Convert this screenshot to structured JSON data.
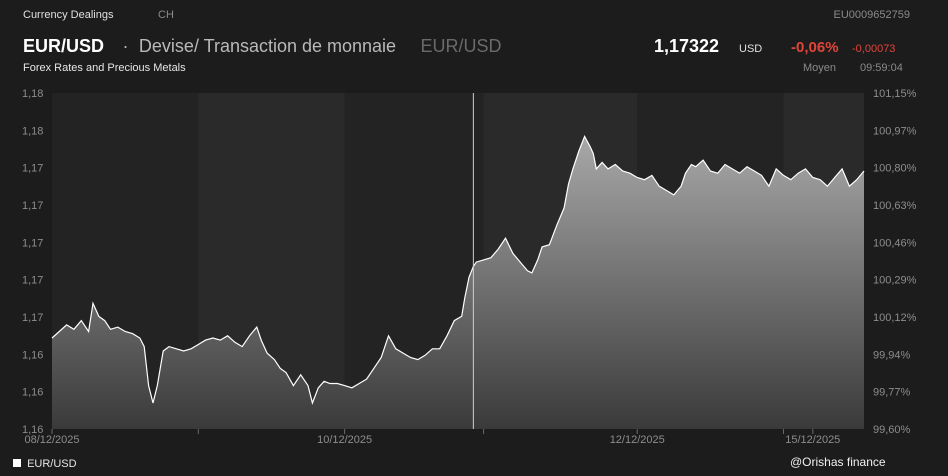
{
  "header": {
    "provider": "Currency Dealings",
    "country": "CH",
    "isin": "EU0009652759",
    "pair": "EUR/USD",
    "separator": "·",
    "description": "Devise/ Transaction de monnaie",
    "pair_dim": "EUR/USD",
    "subtitle": "Forex Rates and Precious Metals",
    "price": "1,17322",
    "currency": "USD",
    "change_pct": "-0,06%",
    "change_abs": "-0,00073",
    "mode": "Moyen",
    "time": "09:59:04"
  },
  "legend": {
    "label": "EUR/USD"
  },
  "watermark": "@Orishas finance",
  "colors": {
    "background": "#1c1c1c",
    "band": "#2a2a2a",
    "line": "#ffffff",
    "negative": "#e0453a"
  },
  "chart_data": {
    "type": "area",
    "series_name": "EUR/USD",
    "left_ticks": [
      "1,18",
      "1,18",
      "1,17",
      "1,17",
      "1,17",
      "1,17",
      "1,17",
      "1,16",
      "1,16",
      "1,16"
    ],
    "right_ticks": [
      "101,15%",
      "100,97%",
      "100,80%",
      "100,63%",
      "100,46%",
      "100,29%",
      "100,12%",
      "99,94%",
      "99,77%",
      "99,60%"
    ],
    "x_ticks": [
      "08/12/2025",
      "10/12/2025",
      "12/12/2025",
      "15/12/2025"
    ],
    "ylim_pct": [
      99.6,
      101.15
    ],
    "x_range_days": [
      0,
      5.55
    ],
    "x_tick_days": [
      0,
      2,
      4,
      5.2
    ],
    "band_days": [
      [
        1.0,
        2.0
      ],
      [
        2.95,
        4.0
      ],
      [
        5.0,
        5.55
      ]
    ],
    "marker_day": 2.88,
    "points": [
      [
        0.0,
        100.02
      ],
      [
        0.05,
        100.05
      ],
      [
        0.1,
        100.08
      ],
      [
        0.15,
        100.06
      ],
      [
        0.2,
        100.1
      ],
      [
        0.25,
        100.05
      ],
      [
        0.28,
        100.18
      ],
      [
        0.32,
        100.12
      ],
      [
        0.36,
        100.1
      ],
      [
        0.4,
        100.06
      ],
      [
        0.45,
        100.07
      ],
      [
        0.5,
        100.05
      ],
      [
        0.55,
        100.04
      ],
      [
        0.6,
        100.02
      ],
      [
        0.63,
        99.98
      ],
      [
        0.66,
        99.8
      ],
      [
        0.69,
        99.72
      ],
      [
        0.72,
        99.8
      ],
      [
        0.76,
        99.96
      ],
      [
        0.8,
        99.98
      ],
      [
        0.85,
        99.97
      ],
      [
        0.9,
        99.96
      ],
      [
        0.95,
        99.97
      ],
      [
        1.0,
        99.99
      ],
      [
        1.05,
        100.01
      ],
      [
        1.1,
        100.02
      ],
      [
        1.15,
        100.01
      ],
      [
        1.2,
        100.03
      ],
      [
        1.25,
        100.0
      ],
      [
        1.3,
        99.98
      ],
      [
        1.35,
        100.03
      ],
      [
        1.4,
        100.07
      ],
      [
        1.43,
        100.01
      ],
      [
        1.47,
        99.95
      ],
      [
        1.52,
        99.92
      ],
      [
        1.56,
        99.88
      ],
      [
        1.6,
        99.86
      ],
      [
        1.65,
        99.8
      ],
      [
        1.7,
        99.85
      ],
      [
        1.75,
        99.8
      ],
      [
        1.78,
        99.72
      ],
      [
        1.82,
        99.79
      ],
      [
        1.86,
        99.82
      ],
      [
        1.9,
        99.81
      ],
      [
        1.95,
        99.81
      ],
      [
        2.0,
        99.8
      ],
      [
        2.05,
        99.79
      ],
      [
        2.1,
        99.81
      ],
      [
        2.15,
        99.83
      ],
      [
        2.2,
        99.88
      ],
      [
        2.25,
        99.93
      ],
      [
        2.3,
        100.03
      ],
      [
        2.35,
        99.97
      ],
      [
        2.4,
        99.95
      ],
      [
        2.45,
        99.93
      ],
      [
        2.5,
        99.92
      ],
      [
        2.55,
        99.94
      ],
      [
        2.6,
        99.97
      ],
      [
        2.65,
        99.97
      ],
      [
        2.7,
        100.03
      ],
      [
        2.75,
        100.1
      ],
      [
        2.8,
        100.12
      ],
      [
        2.82,
        100.2
      ],
      [
        2.85,
        100.3
      ],
      [
        2.88,
        100.35
      ],
      [
        2.9,
        100.37
      ],
      [
        2.95,
        100.38
      ],
      [
        3.0,
        100.39
      ],
      [
        3.05,
        100.43
      ],
      [
        3.1,
        100.48
      ],
      [
        3.15,
        100.41
      ],
      [
        3.2,
        100.37
      ],
      [
        3.25,
        100.33
      ],
      [
        3.28,
        100.32
      ],
      [
        3.32,
        100.38
      ],
      [
        3.35,
        100.44
      ],
      [
        3.4,
        100.45
      ],
      [
        3.45,
        100.54
      ],
      [
        3.5,
        100.62
      ],
      [
        3.53,
        100.73
      ],
      [
        3.56,
        100.8
      ],
      [
        3.6,
        100.88
      ],
      [
        3.64,
        100.95
      ],
      [
        3.68,
        100.9
      ],
      [
        3.7,
        100.87
      ],
      [
        3.72,
        100.8
      ],
      [
        3.76,
        100.83
      ],
      [
        3.8,
        100.8
      ],
      [
        3.85,
        100.82
      ],
      [
        3.9,
        100.79
      ],
      [
        3.95,
        100.78
      ],
      [
        4.0,
        100.76
      ],
      [
        4.05,
        100.75
      ],
      [
        4.1,
        100.77
      ],
      [
        4.15,
        100.72
      ],
      [
        4.2,
        100.7
      ],
      [
        4.25,
        100.68
      ],
      [
        4.3,
        100.72
      ],
      [
        4.33,
        100.78
      ],
      [
        4.37,
        100.82
      ],
      [
        4.4,
        100.81
      ],
      [
        4.45,
        100.84
      ],
      [
        4.5,
        100.79
      ],
      [
        4.55,
        100.78
      ],
      [
        4.6,
        100.82
      ],
      [
        4.65,
        100.8
      ],
      [
        4.7,
        100.78
      ],
      [
        4.75,
        100.81
      ],
      [
        4.8,
        100.79
      ],
      [
        4.85,
        100.77
      ],
      [
        4.9,
        100.72
      ],
      [
        4.95,
        100.8
      ],
      [
        5.0,
        100.77
      ],
      [
        5.05,
        100.75
      ],
      [
        5.1,
        100.78
      ],
      [
        5.15,
        100.8
      ],
      [
        5.2,
        100.76
      ],
      [
        5.25,
        100.75
      ],
      [
        5.3,
        100.72
      ],
      [
        5.35,
        100.76
      ],
      [
        5.4,
        100.8
      ],
      [
        5.45,
        100.72
      ],
      [
        5.5,
        100.75
      ],
      [
        5.55,
        100.79
      ]
    ]
  }
}
